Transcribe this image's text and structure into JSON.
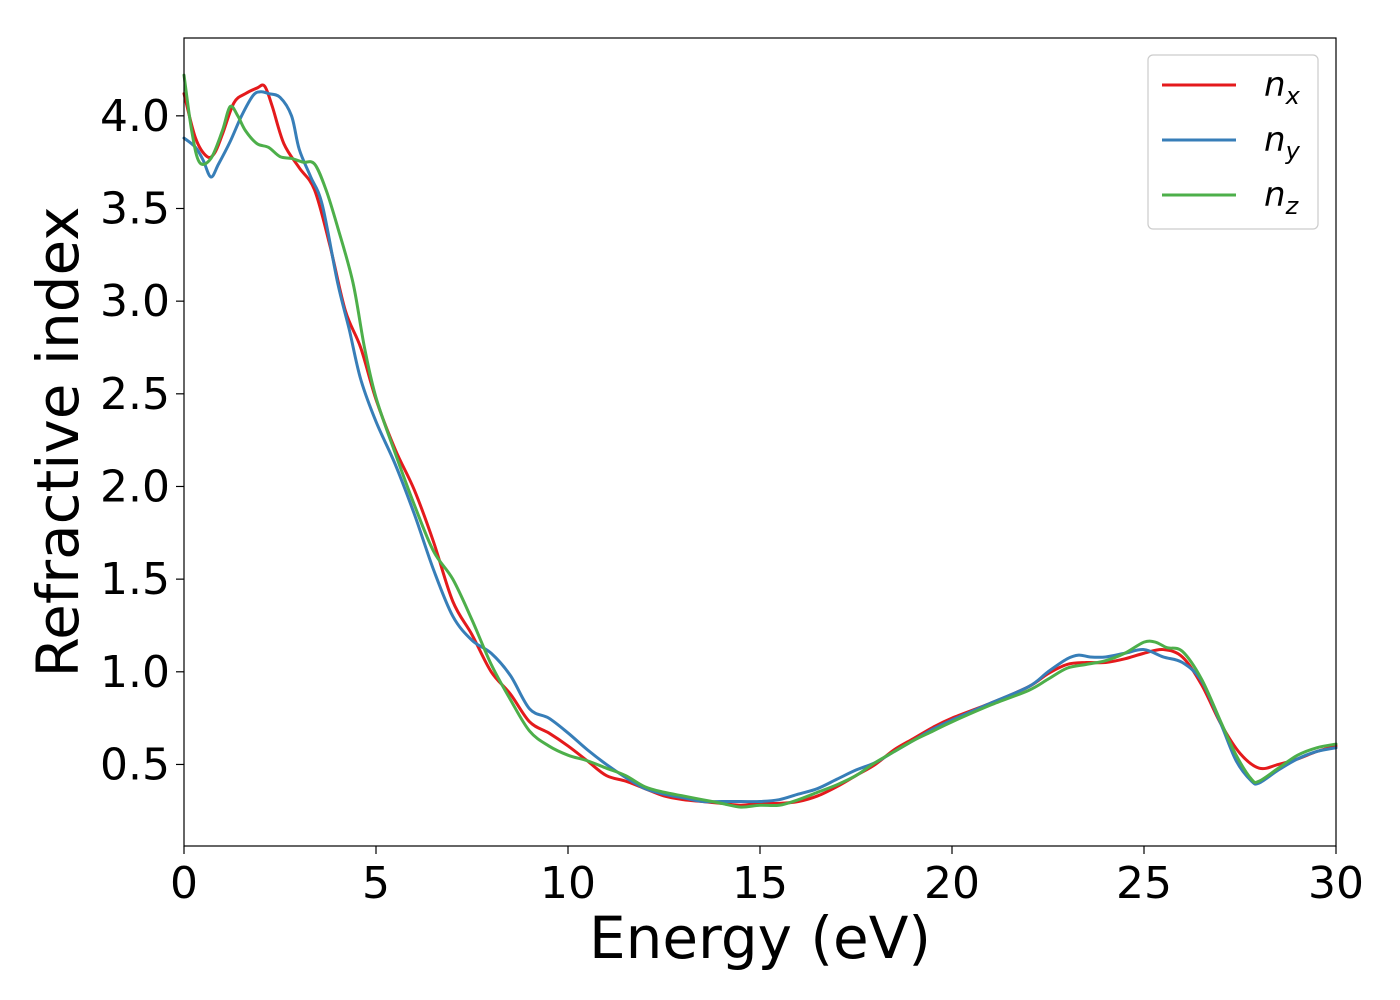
{
  "chart_data": {
    "type": "line",
    "xlabel": "Energy (eV)",
    "ylabel": "Refractive index",
    "xlim": [
      0,
      30
    ],
    "ylim": [
      0.06,
      4.42
    ],
    "x_ticks": [
      0,
      5,
      10,
      15,
      20,
      25,
      30
    ],
    "y_ticks": [
      0.5,
      1.0,
      1.5,
      2.0,
      2.5,
      3.0,
      3.5,
      4.0
    ],
    "x_tick_labels": [
      "0",
      "5",
      "10",
      "15",
      "20",
      "25",
      "30"
    ],
    "y_tick_labels": [
      "0.5",
      "1.0",
      "1.5",
      "2.0",
      "2.5",
      "3.0",
      "3.5",
      "4.0"
    ],
    "grid": false,
    "legend_position": "top-right",
    "series": [
      {
        "name": "n_x",
        "label_base": "n",
        "label_sub": "x",
        "color": "#e41a1c",
        "points": [
          [
            0,
            4.12
          ],
          [
            0.3,
            3.88
          ],
          [
            0.6,
            3.78
          ],
          [
            0.8,
            3.8
          ],
          [
            1.0,
            3.9
          ],
          [
            1.3,
            4.07
          ],
          [
            1.6,
            4.12
          ],
          [
            1.9,
            4.15
          ],
          [
            2.1,
            4.16
          ],
          [
            2.3,
            4.05
          ],
          [
            2.6,
            3.85
          ],
          [
            3.0,
            3.72
          ],
          [
            3.4,
            3.6
          ],
          [
            3.8,
            3.3
          ],
          [
            4.2,
            2.95
          ],
          [
            4.6,
            2.75
          ],
          [
            5.0,
            2.47
          ],
          [
            5.5,
            2.2
          ],
          [
            6.0,
            1.98
          ],
          [
            6.5,
            1.7
          ],
          [
            7.0,
            1.38
          ],
          [
            7.5,
            1.2
          ],
          [
            8.0,
            1.0
          ],
          [
            8.5,
            0.88
          ],
          [
            9.0,
            0.73
          ],
          [
            9.5,
            0.67
          ],
          [
            10.0,
            0.6
          ],
          [
            10.5,
            0.52
          ],
          [
            11.0,
            0.44
          ],
          [
            11.5,
            0.41
          ],
          [
            12.0,
            0.37
          ],
          [
            12.5,
            0.33
          ],
          [
            13.0,
            0.31
          ],
          [
            13.5,
            0.3
          ],
          [
            14.0,
            0.29
          ],
          [
            14.5,
            0.28
          ],
          [
            15.0,
            0.29
          ],
          [
            15.5,
            0.29
          ],
          [
            16.0,
            0.3
          ],
          [
            16.5,
            0.33
          ],
          [
            17.0,
            0.38
          ],
          [
            17.5,
            0.44
          ],
          [
            18.0,
            0.5
          ],
          [
            18.5,
            0.58
          ],
          [
            19.0,
            0.64
          ],
          [
            19.5,
            0.7
          ],
          [
            20.0,
            0.75
          ],
          [
            21.0,
            0.83
          ],
          [
            22.0,
            0.92
          ],
          [
            22.5,
            0.99
          ],
          [
            23.0,
            1.04
          ],
          [
            23.5,
            1.05
          ],
          [
            24.0,
            1.05
          ],
          [
            24.5,
            1.07
          ],
          [
            25.0,
            1.1
          ],
          [
            25.5,
            1.12
          ],
          [
            26.0,
            1.08
          ],
          [
            26.5,
            0.93
          ],
          [
            27.0,
            0.72
          ],
          [
            27.5,
            0.56
          ],
          [
            28.0,
            0.48
          ],
          [
            28.5,
            0.5
          ],
          [
            29.0,
            0.53
          ],
          [
            29.5,
            0.57
          ],
          [
            30.0,
            0.6
          ]
        ]
      },
      {
        "name": "n_y",
        "label_base": "n",
        "label_sub": "y",
        "color": "#377eb8",
        "points": [
          [
            0,
            3.88
          ],
          [
            0.3,
            3.83
          ],
          [
            0.5,
            3.76
          ],
          [
            0.7,
            3.67
          ],
          [
            0.9,
            3.74
          ],
          [
            1.2,
            3.86
          ],
          [
            1.5,
            4.0
          ],
          [
            1.8,
            4.11
          ],
          [
            2.0,
            4.13
          ],
          [
            2.2,
            4.12
          ],
          [
            2.5,
            4.1
          ],
          [
            2.8,
            4.0
          ],
          [
            3.0,
            3.82
          ],
          [
            3.3,
            3.67
          ],
          [
            3.6,
            3.52
          ],
          [
            4.0,
            3.1
          ],
          [
            4.3,
            2.85
          ],
          [
            4.6,
            2.58
          ],
          [
            5.0,
            2.35
          ],
          [
            5.5,
            2.12
          ],
          [
            6.0,
            1.85
          ],
          [
            6.5,
            1.55
          ],
          [
            7.0,
            1.3
          ],
          [
            7.5,
            1.17
          ],
          [
            8.0,
            1.1
          ],
          [
            8.5,
            0.98
          ],
          [
            9.0,
            0.8
          ],
          [
            9.5,
            0.75
          ],
          [
            10.0,
            0.67
          ],
          [
            10.5,
            0.58
          ],
          [
            11.0,
            0.5
          ],
          [
            11.5,
            0.43
          ],
          [
            12.0,
            0.37
          ],
          [
            12.5,
            0.34
          ],
          [
            13.0,
            0.32
          ],
          [
            13.5,
            0.3
          ],
          [
            14.0,
            0.3
          ],
          [
            14.5,
            0.3
          ],
          [
            15.0,
            0.3
          ],
          [
            15.5,
            0.31
          ],
          [
            16.0,
            0.34
          ],
          [
            16.5,
            0.37
          ],
          [
            17.0,
            0.42
          ],
          [
            17.5,
            0.47
          ],
          [
            18.0,
            0.51
          ],
          [
            18.5,
            0.57
          ],
          [
            19.0,
            0.63
          ],
          [
            19.5,
            0.69
          ],
          [
            20.0,
            0.74
          ],
          [
            21.0,
            0.83
          ],
          [
            22.0,
            0.92
          ],
          [
            22.5,
            1.0
          ],
          [
            23.0,
            1.07
          ],
          [
            23.3,
            1.09
          ],
          [
            23.6,
            1.08
          ],
          [
            24.0,
            1.08
          ],
          [
            24.5,
            1.1
          ],
          [
            25.0,
            1.12
          ],
          [
            25.5,
            1.08
          ],
          [
            26.0,
            1.05
          ],
          [
            26.5,
            0.95
          ],
          [
            27.0,
            0.72
          ],
          [
            27.4,
            0.52
          ],
          [
            27.8,
            0.41
          ],
          [
            28.0,
            0.4
          ],
          [
            28.5,
            0.47
          ],
          [
            29.0,
            0.53
          ],
          [
            29.5,
            0.57
          ],
          [
            30.0,
            0.59
          ]
        ]
      },
      {
        "name": "n_z",
        "label_base": "n",
        "label_sub": "z",
        "color": "#4daf4a",
        "points": [
          [
            0,
            4.22
          ],
          [
            0.2,
            3.92
          ],
          [
            0.4,
            3.75
          ],
          [
            0.7,
            3.77
          ],
          [
            1.0,
            3.92
          ],
          [
            1.2,
            4.05
          ],
          [
            1.4,
            4.0
          ],
          [
            1.6,
            3.92
          ],
          [
            1.9,
            3.85
          ],
          [
            2.2,
            3.83
          ],
          [
            2.5,
            3.78
          ],
          [
            2.8,
            3.77
          ],
          [
            3.1,
            3.75
          ],
          [
            3.4,
            3.74
          ],
          [
            3.7,
            3.6
          ],
          [
            4.0,
            3.4
          ],
          [
            4.4,
            3.1
          ],
          [
            4.7,
            2.75
          ],
          [
            5.0,
            2.48
          ],
          [
            5.5,
            2.18
          ],
          [
            6.0,
            1.9
          ],
          [
            6.5,
            1.65
          ],
          [
            7.0,
            1.5
          ],
          [
            7.5,
            1.28
          ],
          [
            8.0,
            1.04
          ],
          [
            8.5,
            0.85
          ],
          [
            9.0,
            0.68
          ],
          [
            9.5,
            0.6
          ],
          [
            10.0,
            0.55
          ],
          [
            10.5,
            0.52
          ],
          [
            11.0,
            0.48
          ],
          [
            11.5,
            0.44
          ],
          [
            12.0,
            0.38
          ],
          [
            12.5,
            0.35
          ],
          [
            13.0,
            0.33
          ],
          [
            13.5,
            0.31
          ],
          [
            14.0,
            0.29
          ],
          [
            14.5,
            0.27
          ],
          [
            15.0,
            0.28
          ],
          [
            15.5,
            0.28
          ],
          [
            16.0,
            0.31
          ],
          [
            16.5,
            0.35
          ],
          [
            17.0,
            0.39
          ],
          [
            17.5,
            0.44
          ],
          [
            18.0,
            0.51
          ],
          [
            18.5,
            0.57
          ],
          [
            19.0,
            0.63
          ],
          [
            19.5,
            0.68
          ],
          [
            20.0,
            0.73
          ],
          [
            21.0,
            0.82
          ],
          [
            22.0,
            0.9
          ],
          [
            22.5,
            0.96
          ],
          [
            23.0,
            1.02
          ],
          [
            23.5,
            1.04
          ],
          [
            24.0,
            1.06
          ],
          [
            24.5,
            1.1
          ],
          [
            25.0,
            1.16
          ],
          [
            25.3,
            1.16
          ],
          [
            25.6,
            1.13
          ],
          [
            26.0,
            1.11
          ],
          [
            26.5,
            0.96
          ],
          [
            27.0,
            0.73
          ],
          [
            27.4,
            0.55
          ],
          [
            27.8,
            0.42
          ],
          [
            28.0,
            0.41
          ],
          [
            28.5,
            0.48
          ],
          [
            29.0,
            0.55
          ],
          [
            29.5,
            0.59
          ],
          [
            30.0,
            0.61
          ]
        ]
      }
    ]
  }
}
